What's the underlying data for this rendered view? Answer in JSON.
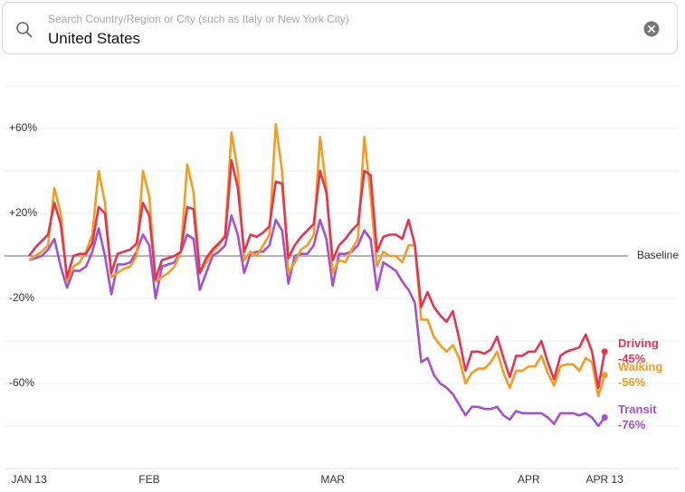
{
  "search": {
    "placeholder": "Search Country/Region or City (such as Italy or New York City)",
    "query": "United States"
  },
  "chart_data": {
    "type": "line",
    "x": [
      0,
      1,
      2,
      3,
      4,
      5,
      6,
      7,
      8,
      9,
      10,
      11,
      12,
      13,
      14,
      15,
      16,
      17,
      18,
      19,
      20,
      21,
      22,
      23,
      24,
      25,
      26,
      27,
      28,
      29,
      30,
      31,
      32,
      33,
      34,
      35,
      36,
      37,
      38,
      39,
      40,
      41,
      42,
      43,
      44,
      45,
      46,
      47,
      48,
      49,
      50,
      51,
      52,
      53,
      54,
      55,
      56,
      57,
      58,
      59,
      60,
      61,
      62,
      63,
      64,
      65,
      66,
      67,
      68,
      69,
      70,
      71,
      72,
      73,
      74,
      75,
      76,
      77,
      78,
      79,
      80,
      81,
      82,
      83,
      84,
      85,
      86,
      87,
      88,
      89,
      90,
      91
    ],
    "xlim": [
      -4.6,
      103.7
    ],
    "xticks": [
      {
        "value": 0,
        "label": "JAN 13"
      },
      {
        "value": 19,
        "label": "FEB"
      },
      {
        "value": 48,
        "label": "MAR"
      },
      {
        "value": 79,
        "label": "APR"
      },
      {
        "value": 91,
        "label": "APR 13"
      }
    ],
    "ylim": [
      -100,
      80
    ],
    "yticks": [
      {
        "value": 60,
        "label": "+60%"
      },
      {
        "value": 20,
        "label": "+20%"
      },
      {
        "value": -20,
        "label": "-20%"
      },
      {
        "value": -60,
        "label": "-60%"
      }
    ],
    "ygrid": [
      80,
      60,
      40,
      20,
      -20,
      -40,
      -60,
      -80
    ],
    "baseline": {
      "value": 0,
      "label": "Baseline"
    },
    "series": [
      {
        "name": "Driving",
        "color": "#e8334f",
        "values": [
          0,
          4,
          7,
          10,
          25,
          15,
          -10,
          0,
          1,
          1,
          6,
          23,
          20,
          -8,
          1,
          2,
          3,
          6,
          25,
          19,
          -11,
          -2,
          -1,
          0,
          2,
          23,
          22,
          -8,
          -1,
          3,
          6,
          9,
          45,
          32,
          2,
          10,
          9,
          11,
          14,
          35,
          34,
          -1,
          5,
          9,
          12,
          15,
          40,
          30,
          -2,
          5,
          8,
          12,
          15,
          40,
          38,
          2,
          9,
          10,
          10,
          8,
          17,
          5,
          -24,
          -17,
          -24,
          -28,
          -31,
          -26,
          -39,
          -54,
          -45,
          -45,
          -46,
          -44,
          -38,
          -48,
          -57,
          -47,
          -47,
          -45,
          -45,
          -40,
          -50,
          -58,
          -47,
          -45,
          -44,
          -43,
          -37,
          -45,
          -62,
          -45
        ],
        "value_labels": [
          null,
          null,
          null,
          null,
          null,
          null,
          null,
          null,
          null,
          null,
          null,
          null,
          null,
          null,
          null,
          null,
          null,
          null,
          null,
          null,
          null,
          null,
          null,
          null,
          null,
          null,
          null,
          null,
          null,
          null,
          null,
          null,
          null,
          null,
          null,
          null,
          null,
          null,
          null,
          null,
          null,
          null,
          null,
          null,
          null,
          null,
          null,
          null,
          null,
          null,
          null,
          null,
          null,
          null,
          null,
          null,
          null,
          null,
          null,
          null,
          null,
          null,
          null,
          null,
          null,
          null,
          null,
          null,
          null,
          null,
          null,
          null,
          null,
          null,
          null,
          null,
          null,
          null,
          null,
          null,
          null,
          null,
          null,
          null,
          null,
          null,
          null,
          null,
          null,
          null,
          null,
          "-45%"
        ]
      },
      {
        "name": "Walking",
        "color": "#f39c1f",
        "values": [
          -2,
          0,
          2,
          5,
          32,
          20,
          -12,
          -5,
          -3,
          2,
          10,
          40,
          25,
          -10,
          -8,
          -6,
          -5,
          0,
          40,
          28,
          -12,
          -10,
          -8,
          -5,
          2,
          43,
          30,
          -8,
          -3,
          2,
          5,
          10,
          58,
          40,
          -2,
          2,
          0,
          5,
          10,
          62,
          40,
          -8,
          -3,
          3,
          5,
          10,
          56,
          32,
          -8,
          -2,
          -3,
          3,
          8,
          56,
          28,
          -5,
          2,
          0,
          0,
          -3,
          5,
          5,
          -30,
          -30,
          -38,
          -42,
          -45,
          -42,
          -48,
          -60,
          -55,
          -53,
          -53,
          -50,
          -45,
          -55,
          -62,
          -54,
          -54,
          -52,
          -52,
          -47,
          -55,
          -61,
          -52,
          -51,
          -51,
          -54,
          -48,
          -50,
          -66,
          -56
        ],
        "value_labels": [
          null,
          null,
          null,
          null,
          null,
          null,
          null,
          null,
          null,
          null,
          null,
          null,
          null,
          null,
          null,
          null,
          null,
          null,
          null,
          null,
          null,
          null,
          null,
          null,
          null,
          null,
          null,
          null,
          null,
          null,
          null,
          null,
          null,
          null,
          null,
          null,
          null,
          null,
          null,
          null,
          null,
          null,
          null,
          null,
          null,
          null,
          null,
          null,
          null,
          null,
          null,
          null,
          null,
          null,
          null,
          null,
          null,
          null,
          null,
          null,
          null,
          null,
          null,
          null,
          null,
          null,
          null,
          null,
          null,
          null,
          null,
          null,
          null,
          null,
          null,
          null,
          null,
          null,
          null,
          null,
          null,
          null,
          null,
          null,
          null,
          null,
          null,
          null,
          null,
          null,
          null,
          "-56%"
        ]
      },
      {
        "name": "Transit",
        "color": "#a64fd1",
        "values": [
          -2,
          -1,
          0,
          3,
          8,
          -5,
          -15,
          -7,
          -7,
          -5,
          2,
          13,
          0,
          -18,
          -4,
          -4,
          -3,
          2,
          10,
          5,
          -20,
          -5,
          -4,
          -3,
          2,
          10,
          8,
          -16,
          -8,
          0,
          2,
          5,
          19,
          10,
          -8,
          1,
          2,
          2,
          5,
          17,
          12,
          -13,
          0,
          1,
          1,
          5,
          17,
          8,
          -14,
          1,
          1,
          2,
          5,
          12,
          8,
          -16,
          -3,
          -5,
          -7,
          -12,
          -16,
          -22,
          -50,
          -48,
          -56,
          -60,
          -62,
          -65,
          -70,
          -75,
          -71,
          -71,
          -72,
          -72,
          -71,
          -75,
          -77,
          -73,
          -74,
          -74,
          -74,
          -74,
          -76,
          -79,
          -74,
          -74,
          -74,
          -75,
          -74,
          -76,
          -80,
          -76
        ],
        "value_labels": [
          null,
          null,
          null,
          null,
          null,
          null,
          null,
          null,
          null,
          null,
          null,
          null,
          null,
          null,
          null,
          null,
          null,
          null,
          null,
          null,
          null,
          null,
          null,
          null,
          null,
          null,
          null,
          null,
          null,
          null,
          null,
          null,
          null,
          null,
          null,
          null,
          null,
          null,
          null,
          null,
          null,
          null,
          null,
          null,
          null,
          null,
          null,
          null,
          null,
          null,
          null,
          null,
          null,
          null,
          null,
          null,
          null,
          null,
          null,
          null,
          null,
          null,
          null,
          null,
          null,
          null,
          null,
          null,
          null,
          null,
          null,
          null,
          null,
          null,
          null,
          null,
          null,
          null,
          null,
          null,
          null,
          null,
          null,
          null,
          null,
          null,
          null,
          null,
          null,
          null,
          null,
          "-76%"
        ]
      }
    ]
  }
}
